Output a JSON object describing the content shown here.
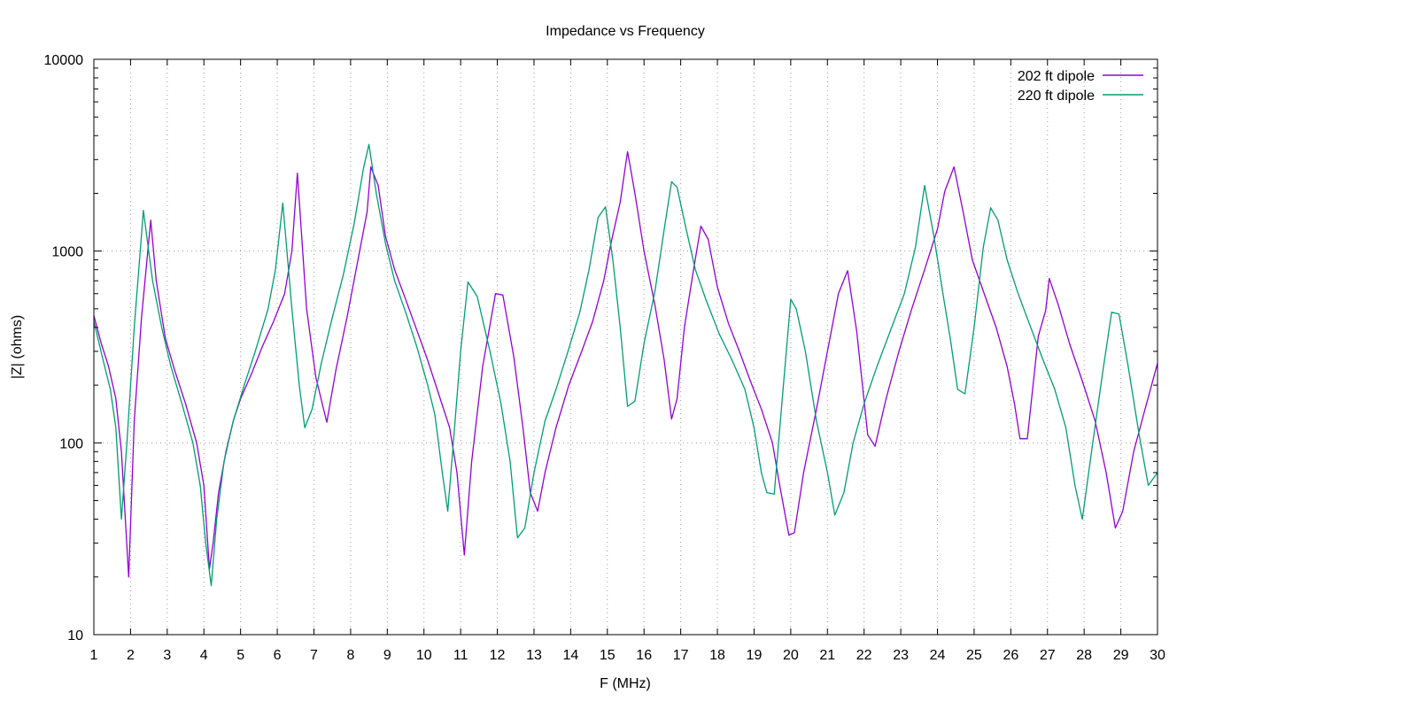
{
  "chart_data": {
    "type": "line",
    "title": "Impedance vs Frequency",
    "xlabel": "F (MHz)",
    "ylabel": "|Z| (ohms)",
    "xlim": [
      1,
      30
    ],
    "ylim": [
      10,
      10000
    ],
    "yscale": "log",
    "grid": true,
    "legend_position": "top-right",
    "x_ticks": [
      "1",
      "2",
      "3",
      "4",
      "5",
      "6",
      "7",
      "8",
      "9",
      "10",
      "11",
      "12",
      "13",
      "14",
      "15",
      "16",
      "17",
      "18",
      "19",
      "20",
      "21",
      "22",
      "23",
      "24",
      "25",
      "26",
      "27",
      "28",
      "29",
      "30"
    ],
    "y_ticks": [
      "10",
      "100",
      "1000",
      "10000"
    ],
    "series": [
      {
        "name": "202 ft dipole",
        "color": "#9400d3",
        "points": [
          [
            1,
            460
          ],
          [
            1.2,
            330
          ],
          [
            1.4,
            250
          ],
          [
            1.6,
            170
          ],
          [
            1.75,
            90
          ],
          [
            1.95,
            20
          ],
          [
            2.1,
            130
          ],
          [
            2.3,
            450
          ],
          [
            2.55,
            1450
          ],
          [
            2.7,
            700
          ],
          [
            2.95,
            350
          ],
          [
            3.2,
            240
          ],
          [
            3.5,
            160
          ],
          [
            3.8,
            100
          ],
          [
            4.0,
            60
          ],
          [
            4.15,
            22
          ],
          [
            4.25,
            30
          ],
          [
            4.4,
            55
          ],
          [
            4.6,
            90
          ],
          [
            4.8,
            130
          ],
          [
            5.0,
            170
          ],
          [
            5.3,
            230
          ],
          [
            5.6,
            320
          ],
          [
            5.9,
            430
          ],
          [
            6.2,
            600
          ],
          [
            6.4,
            1000
          ],
          [
            6.55,
            2550
          ],
          [
            6.8,
            500
          ],
          [
            7.05,
            220
          ],
          [
            7.35,
            128
          ],
          [
            7.6,
            240
          ],
          [
            7.9,
            450
          ],
          [
            8.2,
            900
          ],
          [
            8.45,
            1600
          ],
          [
            8.55,
            2750
          ],
          [
            8.75,
            2200
          ],
          [
            8.95,
            1200
          ],
          [
            9.2,
            800
          ],
          [
            9.5,
            560
          ],
          [
            9.8,
            390
          ],
          [
            10.1,
            270
          ],
          [
            10.4,
            180
          ],
          [
            10.7,
            120
          ],
          [
            10.9,
            70
          ],
          [
            11.1,
            26
          ],
          [
            11.3,
            80
          ],
          [
            11.6,
            250
          ],
          [
            11.95,
            600
          ],
          [
            12.15,
            590
          ],
          [
            12.45,
            280
          ],
          [
            12.7,
            120
          ],
          [
            12.9,
            55
          ],
          [
            13.1,
            44
          ],
          [
            13.3,
            70
          ],
          [
            13.6,
            120
          ],
          [
            13.95,
            200
          ],
          [
            14.3,
            300
          ],
          [
            14.6,
            430
          ],
          [
            14.9,
            700
          ],
          [
            15.1,
            1100
          ],
          [
            15.35,
            1800
          ],
          [
            15.55,
            3300
          ],
          [
            15.75,
            2000
          ],
          [
            16.0,
            1000
          ],
          [
            16.3,
            520
          ],
          [
            16.55,
            270
          ],
          [
            16.75,
            133
          ],
          [
            16.9,
            170
          ],
          [
            17.1,
            400
          ],
          [
            17.35,
            800
          ],
          [
            17.55,
            1350
          ],
          [
            17.75,
            1150
          ],
          [
            18.0,
            650
          ],
          [
            18.3,
            420
          ],
          [
            18.6,
            300
          ],
          [
            18.9,
            210
          ],
          [
            19.2,
            150
          ],
          [
            19.5,
            100
          ],
          [
            19.7,
            60
          ],
          [
            19.95,
            33
          ],
          [
            20.1,
            34
          ],
          [
            20.35,
            70
          ],
          [
            20.7,
            150
          ],
          [
            21.0,
            300
          ],
          [
            21.3,
            600
          ],
          [
            21.55,
            790
          ],
          [
            21.8,
            380
          ],
          [
            22.1,
            110
          ],
          [
            22.3,
            96
          ],
          [
            22.6,
            170
          ],
          [
            22.95,
            300
          ],
          [
            23.3,
            500
          ],
          [
            23.65,
            800
          ],
          [
            24.0,
            1300
          ],
          [
            24.2,
            2050
          ],
          [
            24.45,
            2750
          ],
          [
            24.7,
            1600
          ],
          [
            24.95,
            900
          ],
          [
            25.3,
            580
          ],
          [
            25.6,
            400
          ],
          [
            25.9,
            250
          ],
          [
            26.1,
            160
          ],
          [
            26.25,
            105
          ],
          [
            26.45,
            105
          ],
          [
            26.75,
            360
          ],
          [
            26.95,
            490
          ],
          [
            27.05,
            720
          ],
          [
            27.3,
            520
          ],
          [
            27.6,
            330
          ],
          [
            27.95,
            210
          ],
          [
            28.3,
            130
          ],
          [
            28.6,
            70
          ],
          [
            28.85,
            36
          ],
          [
            29.05,
            44
          ],
          [
            29.35,
            90
          ],
          [
            29.7,
            160
          ],
          [
            30.0,
            260
          ]
        ]
      },
      {
        "name": "220 ft dipole",
        "color": "#009e73",
        "points": [
          [
            1,
            430
          ],
          [
            1.25,
            270
          ],
          [
            1.45,
            190
          ],
          [
            1.6,
            120
          ],
          [
            1.75,
            40
          ],
          [
            1.9,
            100
          ],
          [
            2.1,
            400
          ],
          [
            2.35,
            1630
          ],
          [
            2.6,
            700
          ],
          [
            2.85,
            400
          ],
          [
            3.1,
            250
          ],
          [
            3.4,
            160
          ],
          [
            3.7,
            100
          ],
          [
            3.9,
            60
          ],
          [
            4.05,
            30
          ],
          [
            4.2,
            18
          ],
          [
            4.35,
            40
          ],
          [
            4.55,
            80
          ],
          [
            4.8,
            130
          ],
          [
            5.1,
            200
          ],
          [
            5.4,
            300
          ],
          [
            5.75,
            500
          ],
          [
            5.95,
            800
          ],
          [
            6.15,
            1780
          ],
          [
            6.4,
            500
          ],
          [
            6.6,
            200
          ],
          [
            6.75,
            120
          ],
          [
            6.95,
            150
          ],
          [
            7.2,
            260
          ],
          [
            7.5,
            450
          ],
          [
            7.8,
            750
          ],
          [
            8.1,
            1400
          ],
          [
            8.35,
            2700
          ],
          [
            8.5,
            3600
          ],
          [
            8.7,
            2000
          ],
          [
            8.95,
            1100
          ],
          [
            9.2,
            700
          ],
          [
            9.5,
            480
          ],
          [
            9.8,
            320
          ],
          [
            10.1,
            200
          ],
          [
            10.3,
            140
          ],
          [
            10.5,
            70
          ],
          [
            10.65,
            44
          ],
          [
            10.8,
            100
          ],
          [
            11.0,
            300
          ],
          [
            11.2,
            690
          ],
          [
            11.45,
            580
          ],
          [
            11.8,
            300
          ],
          [
            12.1,
            160
          ],
          [
            12.35,
            80
          ],
          [
            12.55,
            32
          ],
          [
            12.75,
            36
          ],
          [
            13.0,
            70
          ],
          [
            13.3,
            130
          ],
          [
            13.6,
            190
          ],
          [
            13.95,
            310
          ],
          [
            14.25,
            480
          ],
          [
            14.5,
            800
          ],
          [
            14.75,
            1500
          ],
          [
            14.95,
            1700
          ],
          [
            15.15,
            900
          ],
          [
            15.35,
            400
          ],
          [
            15.55,
            155
          ],
          [
            15.75,
            165
          ],
          [
            16.0,
            330
          ],
          [
            16.3,
            620
          ],
          [
            16.55,
            1300
          ],
          [
            16.75,
            2300
          ],
          [
            16.9,
            2150
          ],
          [
            17.15,
            1300
          ],
          [
            17.4,
            800
          ],
          [
            17.7,
            550
          ],
          [
            18.05,
            370
          ],
          [
            18.4,
            270
          ],
          [
            18.75,
            190
          ],
          [
            19.0,
            120
          ],
          [
            19.2,
            70
          ],
          [
            19.35,
            55
          ],
          [
            19.55,
            54
          ],
          [
            19.8,
            200
          ],
          [
            20.0,
            560
          ],
          [
            20.15,
            500
          ],
          [
            20.4,
            300
          ],
          [
            20.7,
            130
          ],
          [
            21.0,
            70
          ],
          [
            21.2,
            42
          ],
          [
            21.45,
            55
          ],
          [
            21.7,
            100
          ],
          [
            22.0,
            160
          ],
          [
            22.35,
            250
          ],
          [
            22.75,
            400
          ],
          [
            23.1,
            600
          ],
          [
            23.4,
            1050
          ],
          [
            23.65,
            2200
          ],
          [
            23.9,
            1200
          ],
          [
            24.15,
            600
          ],
          [
            24.35,
            350
          ],
          [
            24.55,
            190
          ],
          [
            24.75,
            180
          ],
          [
            25.0,
            400
          ],
          [
            25.25,
            1050
          ],
          [
            25.45,
            1680
          ],
          [
            25.65,
            1450
          ],
          [
            25.9,
            900
          ],
          [
            26.2,
            600
          ],
          [
            26.5,
            420
          ],
          [
            26.85,
            280
          ],
          [
            27.2,
            190
          ],
          [
            27.5,
            120
          ],
          [
            27.75,
            60
          ],
          [
            27.95,
            40
          ],
          [
            28.2,
            90
          ],
          [
            28.5,
            230
          ],
          [
            28.75,
            480
          ],
          [
            28.95,
            470
          ],
          [
            29.2,
            250
          ],
          [
            29.5,
            110
          ],
          [
            29.75,
            60
          ],
          [
            30.0,
            70
          ]
        ]
      }
    ]
  }
}
